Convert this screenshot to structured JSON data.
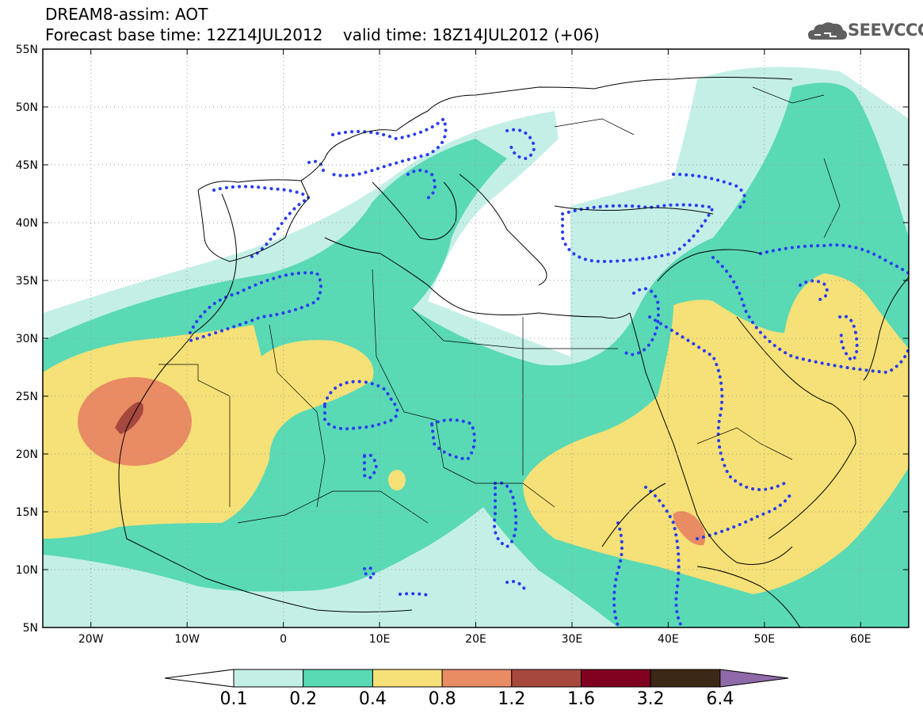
{
  "header": {
    "line1": "DREAM8-assim: AOT",
    "line2": "Forecast base time: 12Z14JUL2012    valid time: 18Z14JUL2012 (+06)"
  },
  "logo": {
    "text": "SEEVCCC",
    "icon": "cloud-logo-icon"
  },
  "map": {
    "lat_labels": [
      "55N",
      "50N",
      "45N",
      "40N",
      "35N",
      "30N",
      "25N",
      "20N",
      "15N",
      "10N",
      "5N"
    ],
    "lon_labels": [
      "20W",
      "10W",
      "0",
      "10E",
      "20E",
      "30E",
      "40E",
      "50E",
      "60E"
    ],
    "lon_range": [
      -25,
      65
    ],
    "lat_range": [
      5,
      55
    ],
    "grid": true
  },
  "legend": {
    "levels": [
      "0.1",
      "0.2",
      "0.4",
      "0.8",
      "1.2",
      "1.6",
      "3.2",
      "6.4"
    ],
    "colors": [
      "#ffffff",
      "#c4efe7",
      "#5ad9b5",
      "#f5e177",
      "#e98b63",
      "#a6483e",
      "#800020",
      "#3c2816",
      "#8f6aa8"
    ],
    "accent_dotted": "#2a3cf0"
  }
}
